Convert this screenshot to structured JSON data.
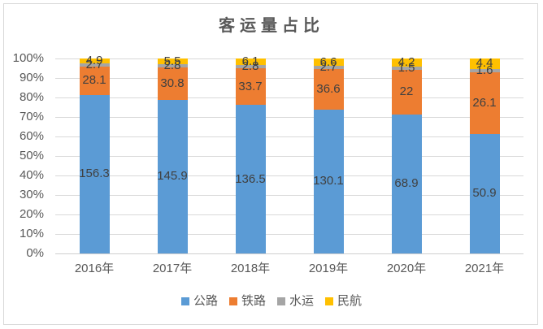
{
  "chart_data": {
    "type": "bar",
    "subtype": "stacked-100-percent",
    "title": "客运量占比",
    "categories": [
      "2016年",
      "2017年",
      "2018年",
      "2019年",
      "2020年",
      "2021年"
    ],
    "series": [
      {
        "name": "公路",
        "color": "#5B9BD5",
        "values": [
          156.3,
          145.9,
          136.5,
          130.1,
          68.9,
          50.9
        ]
      },
      {
        "name": "铁路",
        "color": "#ED7D31",
        "values": [
          28.1,
          30.8,
          33.7,
          36.6,
          22,
          26.1
        ]
      },
      {
        "name": "水运",
        "color": "#A5A5A5",
        "values": [
          2.7,
          2.8,
          2.8,
          2.7,
          1.5,
          1.6
        ]
      },
      {
        "name": "民航",
        "color": "#FFC000",
        "values": [
          4.9,
          5.5,
          6.1,
          6.6,
          4.2,
          4.4
        ]
      }
    ],
    "y_axis": {
      "min": 0,
      "max": 100,
      "tick_step": 10,
      "tick_labels": [
        "0%",
        "10%",
        "20%",
        "30%",
        "40%",
        "50%",
        "60%",
        "70%",
        "80%",
        "90%",
        "100%"
      ],
      "grid": true
    },
    "data_labels": true,
    "legend": {
      "position": "bottom"
    },
    "colors": {
      "background": "#FFFFFF",
      "frame_border": "#D9D9D9",
      "gridline": "#D9D9D9",
      "axis_line": "#CFCFCF",
      "axis_text": "#595959",
      "title_text": "#595959",
      "data_label_text": "#404040"
    }
  }
}
